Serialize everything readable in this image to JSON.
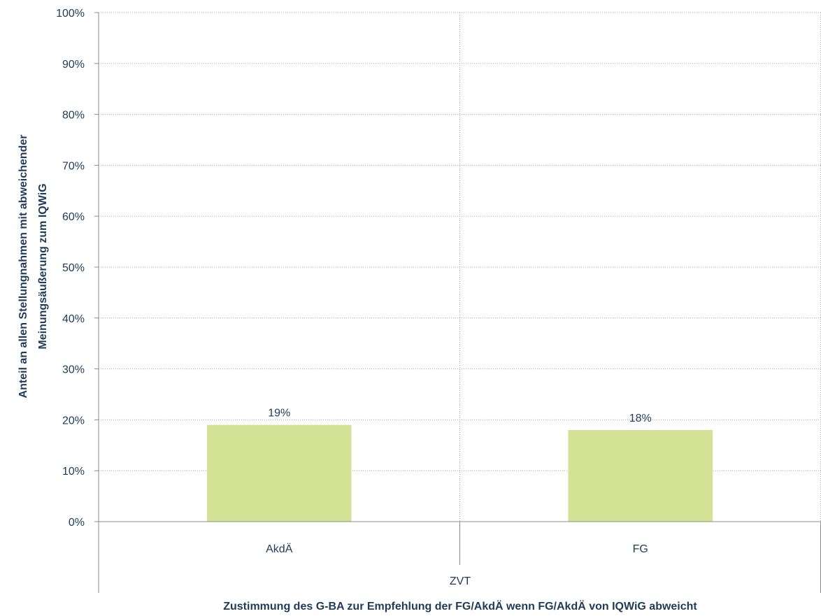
{
  "colors": {
    "bar": "#d3e294",
    "text": "#1f3b5a",
    "grid": "#a6a6a6",
    "axis": "#8c8c8c"
  },
  "chart_data": {
    "type": "bar",
    "categories": [
      "AkdÄ",
      "FG"
    ],
    "group_label": "ZVT",
    "series": [
      {
        "values": [
          19,
          18
        ]
      }
    ],
    "data_labels": [
      "19%",
      "18%"
    ],
    "ylim": [
      0,
      100
    ],
    "yticks": [
      0,
      10,
      20,
      30,
      40,
      50,
      60,
      70,
      80,
      90,
      100
    ],
    "ytick_labels": [
      "0%",
      "10%",
      "20%",
      "30%",
      "40%",
      "50%",
      "60%",
      "70%",
      "80%",
      "90%",
      "100%"
    ],
    "ylabel_line1": "Anteil an allen Stellungnahmen mit abweichender",
    "ylabel_line2": "Meinungsäußerung zum IQWiG",
    "xlabel": "Zustimmung des G-BA zur Empfehlung der FG/AkdÄ wenn FG/AkdÄ von IQWiG abweicht",
    "grid": true,
    "legend": "none"
  }
}
